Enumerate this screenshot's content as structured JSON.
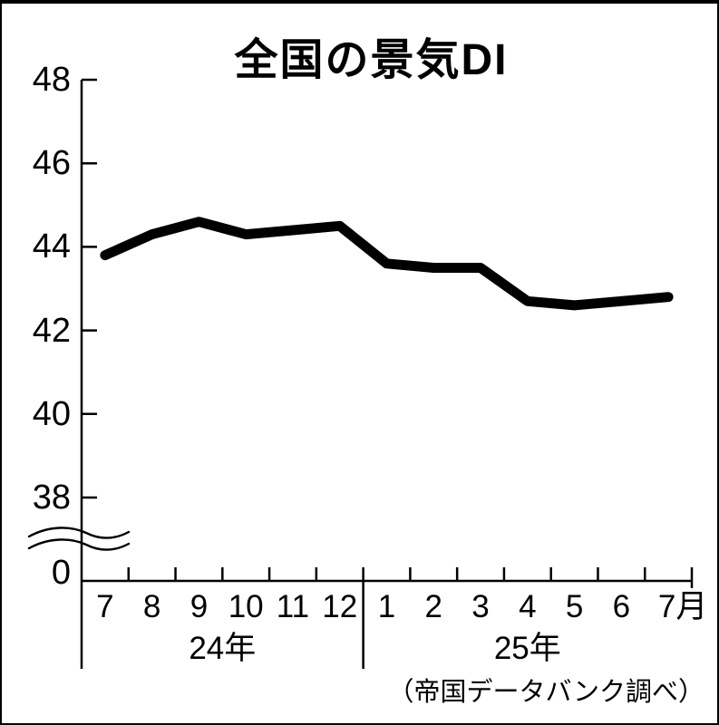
{
  "title": "全国の景気DI",
  "footer": {
    "source": "（帝国データバンク調べ）"
  },
  "chart_data": {
    "type": "line",
    "title": "全国の景気DI",
    "source": "（帝国データバンク調べ）",
    "x_labels": [
      "7",
      "8",
      "9",
      "10",
      "11",
      "12",
      "1",
      "2",
      "3",
      "4",
      "5",
      "6",
      "7月"
    ],
    "year_groups": [
      {
        "label": "24年",
        "months": 6
      },
      {
        "label": "25年",
        "months": 7
      }
    ],
    "series": [
      {
        "name": "景気DI",
        "values": [
          43.8,
          44.3,
          44.6,
          44.3,
          44.4,
          44.5,
          43.6,
          43.5,
          43.5,
          42.7,
          42.6,
          42.7,
          42.8
        ]
      }
    ],
    "y_ticks": [
      48,
      46,
      44,
      42,
      40,
      38
    ],
    "y_axis_break": true,
    "y_break_label": "0",
    "y_range_shown": [
      38,
      48
    ],
    "grid": false,
    "legend": "none",
    "line_color": "#000000",
    "background_color": "#ffffff"
  }
}
